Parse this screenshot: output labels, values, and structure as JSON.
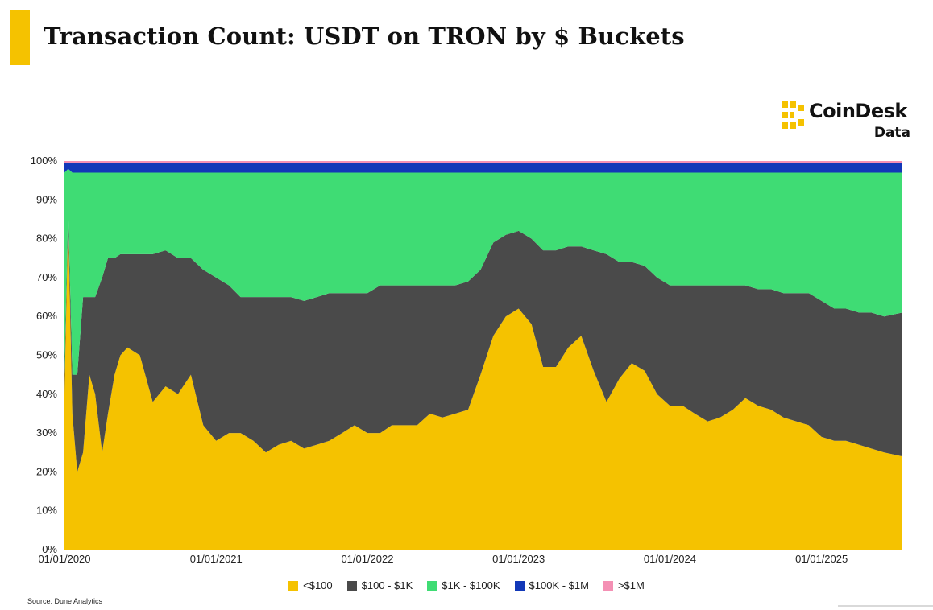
{
  "header": {
    "title": "Transaction Count: USDT on TRON by $ Buckets"
  },
  "branding": {
    "logo_word": "CoinDesk",
    "logo_sub": "Data",
    "accent_color": "#f5c200"
  },
  "source": {
    "text": "Source: Dune Analytics"
  },
  "chart_data": {
    "type": "area",
    "stacked": true,
    "normalized": true,
    "title": "Transaction Count: USDT on TRON by $ Buckets",
    "xlabel": "",
    "ylabel": "",
    "x_range": [
      "2020-01-01",
      "2025-07-15"
    ],
    "ylim": [
      0,
      100
    ],
    "y_unit": "%",
    "y_ticks": [
      0,
      10,
      20,
      30,
      40,
      50,
      60,
      70,
      80,
      90,
      100
    ],
    "y_tick_labels": [
      "0%",
      "10%",
      "20%",
      "30%",
      "40%",
      "50%",
      "60%",
      "70%",
      "80%",
      "90%",
      "100%"
    ],
    "x_ticks": [
      "2020-01-01",
      "2021-01-01",
      "2022-01-01",
      "2023-01-01",
      "2024-01-01",
      "2025-01-01"
    ],
    "x_tick_labels": [
      "01/01/2020",
      "01/01/2021",
      "01/01/2022",
      "01/01/2023",
      "01/01/2024",
      "01/01/2025"
    ],
    "grid": false,
    "legend_position": "bottom",
    "x": [
      "2020-01-01",
      "2020-01-10",
      "2020-01-20",
      "2020-02-01",
      "2020-02-15",
      "2020-03-01",
      "2020-03-15",
      "2020-04-01",
      "2020-04-15",
      "2020-05-01",
      "2020-05-15",
      "2020-06-01",
      "2020-07-01",
      "2020-08-01",
      "2020-09-01",
      "2020-10-01",
      "2020-11-01",
      "2020-12-01",
      "2021-01-01",
      "2021-02-01",
      "2021-03-01",
      "2021-04-01",
      "2021-05-01",
      "2021-06-01",
      "2021-07-01",
      "2021-08-01",
      "2021-09-01",
      "2021-10-01",
      "2021-11-01",
      "2021-12-01",
      "2022-01-01",
      "2022-02-01",
      "2022-03-01",
      "2022-04-01",
      "2022-05-01",
      "2022-06-01",
      "2022-07-01",
      "2022-08-01",
      "2022-09-01",
      "2022-10-01",
      "2022-11-01",
      "2022-12-01",
      "2023-01-01",
      "2023-02-01",
      "2023-03-01",
      "2023-04-01",
      "2023-05-01",
      "2023-06-01",
      "2023-07-01",
      "2023-08-01",
      "2023-09-01",
      "2023-10-01",
      "2023-11-01",
      "2023-12-01",
      "2024-01-01",
      "2024-02-01",
      "2024-03-01",
      "2024-04-01",
      "2024-05-01",
      "2024-06-01",
      "2024-07-01",
      "2024-08-01",
      "2024-09-01",
      "2024-10-01",
      "2024-11-01",
      "2024-12-01",
      "2025-01-01",
      "2025-02-01",
      "2025-03-01",
      "2025-04-01",
      "2025-05-01",
      "2025-06-01",
      "2025-07-15"
    ],
    "series": [
      {
        "name": "<$100",
        "color": "#f5c200",
        "values": [
          40,
          85,
          35,
          20,
          25,
          45,
          40,
          25,
          35,
          45,
          50,
          52,
          50,
          38,
          42,
          40,
          45,
          32,
          28,
          30,
          30,
          28,
          25,
          27,
          28,
          26,
          27,
          28,
          30,
          32,
          30,
          30,
          32,
          32,
          32,
          35,
          34,
          35,
          36,
          45,
          55,
          60,
          62,
          58,
          47,
          47,
          52,
          55,
          46,
          38,
          44,
          48,
          46,
          40,
          37,
          37,
          35,
          33,
          34,
          36,
          39,
          37,
          36,
          34,
          33,
          32,
          29,
          28,
          28,
          27,
          26,
          25,
          24
        ]
      },
      {
        "name": "$100 - $1K",
        "color": "#4a4a4a",
        "values": [
          5,
          3,
          10,
          25,
          40,
          20,
          25,
          45,
          40,
          30,
          26,
          24,
          26,
          38,
          35,
          35,
          30,
          40,
          42,
          38,
          35,
          37,
          40,
          38,
          37,
          38,
          38,
          38,
          36,
          34,
          36,
          38,
          36,
          36,
          36,
          33,
          34,
          33,
          33,
          27,
          24,
          21,
          20,
          22,
          30,
          30,
          26,
          23,
          31,
          38,
          30,
          26,
          27,
          30,
          31,
          31,
          33,
          35,
          34,
          32,
          29,
          30,
          31,
          32,
          33,
          34,
          35,
          34,
          34,
          34,
          35,
          35,
          37
        ]
      },
      {
        "name": "$1K - $100K",
        "color": "#3fdc74",
        "values": [
          52,
          10,
          52,
          52,
          32,
          32,
          32,
          27,
          22,
          22,
          21,
          21,
          21,
          21,
          20,
          22,
          22,
          25,
          27,
          29,
          32,
          32,
          32,
          32,
          32,
          33,
          32,
          31,
          31,
          31,
          31,
          29,
          29,
          29,
          29,
          29,
          29,
          29,
          28,
          25,
          18,
          16,
          15,
          17,
          20,
          20,
          19,
          19,
          20,
          21,
          23,
          23,
          24,
          27,
          29,
          29,
          29,
          29,
          29,
          29,
          29,
          30,
          30,
          31,
          31,
          31,
          33,
          35,
          35,
          36,
          36,
          37,
          36
        ]
      },
      {
        "name": "$100K - $1M",
        "color": "#1238b8",
        "values": [
          2.5,
          1.5,
          2.5,
          2.5,
          2.5,
          2.5,
          2.5,
          2.5,
          2.5,
          2.5,
          2.5,
          2.5,
          2.5,
          2.5,
          2.5,
          2.5,
          2.5,
          2.5,
          2.5,
          2.5,
          2.5,
          2.5,
          2.5,
          2.5,
          2.5,
          2.5,
          2.5,
          2.5,
          2.5,
          2.5,
          2.5,
          2.5,
          2.5,
          2.5,
          2.5,
          2.5,
          2.5,
          2.5,
          2.5,
          2.5,
          2.5,
          2.5,
          2.5,
          2.5,
          2.5,
          2.5,
          2.5,
          2.5,
          2.5,
          2.5,
          2.5,
          2.5,
          2.5,
          2.5,
          2.5,
          2.5,
          2.5,
          2.5,
          2.5,
          2.5,
          2.5,
          2.5,
          2.5,
          2.5,
          2.5,
          2.5,
          2.5,
          2.5,
          2.5,
          2.5,
          2.5,
          2.5,
          2.5
        ]
      },
      {
        "name": ">$1M",
        "color": "#f490b4",
        "values": [
          0.5,
          0.5,
          0.5,
          0.5,
          0.5,
          0.5,
          0.5,
          0.5,
          0.5,
          0.5,
          0.5,
          0.5,
          0.5,
          0.5,
          0.5,
          0.5,
          0.5,
          0.5,
          0.5,
          0.5,
          0.5,
          0.5,
          0.5,
          0.5,
          0.5,
          0.5,
          0.5,
          0.5,
          0.5,
          0.5,
          0.5,
          0.5,
          0.5,
          0.5,
          0.5,
          0.5,
          0.5,
          0.5,
          0.5,
          0.5,
          0.5,
          0.5,
          0.5,
          0.5,
          0.5,
          0.5,
          0.5,
          0.5,
          0.5,
          0.5,
          0.5,
          0.5,
          0.5,
          0.5,
          0.5,
          0.5,
          0.5,
          0.5,
          0.5,
          0.5,
          0.5,
          0.5,
          0.5,
          0.5,
          0.5,
          0.5,
          0.5,
          0.5,
          0.5,
          0.5,
          0.5,
          0.5,
          0.5
        ]
      }
    ]
  }
}
